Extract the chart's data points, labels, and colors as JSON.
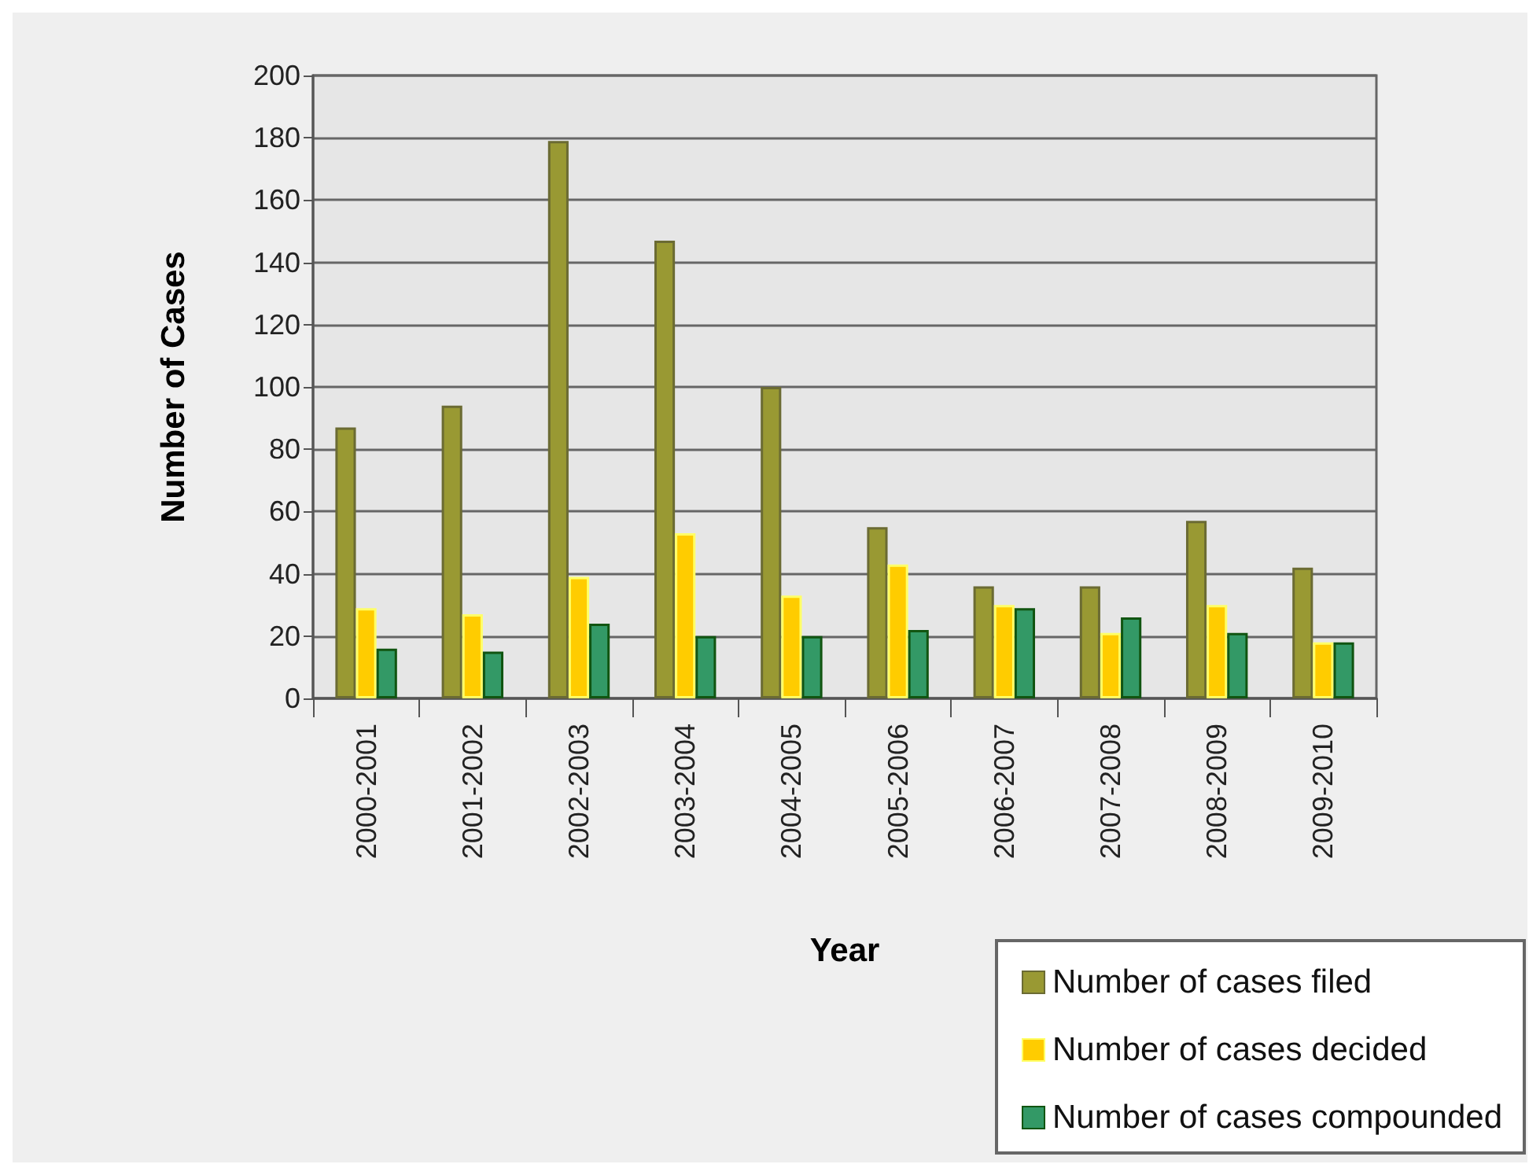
{
  "chart_data": {
    "type": "bar",
    "xlabel": "Year",
    "ylabel": "Number of Cases",
    "categories": [
      "2000-2001",
      "2001-2002",
      "2002-2003",
      "2003-2004",
      "2004-2005",
      "2005-2006",
      "2006-2007",
      "2007-2008",
      "2008-2009",
      "2009-2010"
    ],
    "series": [
      {
        "name": "Number of cases filed",
        "color": "#999933",
        "values": [
          87,
          94,
          179,
          147,
          100,
          55,
          36,
          36,
          57,
          42
        ]
      },
      {
        "name": "Number of cases decided",
        "color": "#ffcc00",
        "values": [
          29,
          27,
          39,
          53,
          33,
          43,
          30,
          21,
          30,
          18
        ]
      },
      {
        "name": "Number of cases compounded",
        "color": "#339966",
        "values": [
          16,
          15,
          24,
          20,
          20,
          22,
          29,
          26,
          21,
          18
        ]
      }
    ],
    "ylim": [
      0,
      200
    ],
    "yticks": [
      0,
      20,
      40,
      60,
      80,
      100,
      120,
      140,
      160,
      180,
      200
    ],
    "grid": "y",
    "legend": "bottom right"
  }
}
